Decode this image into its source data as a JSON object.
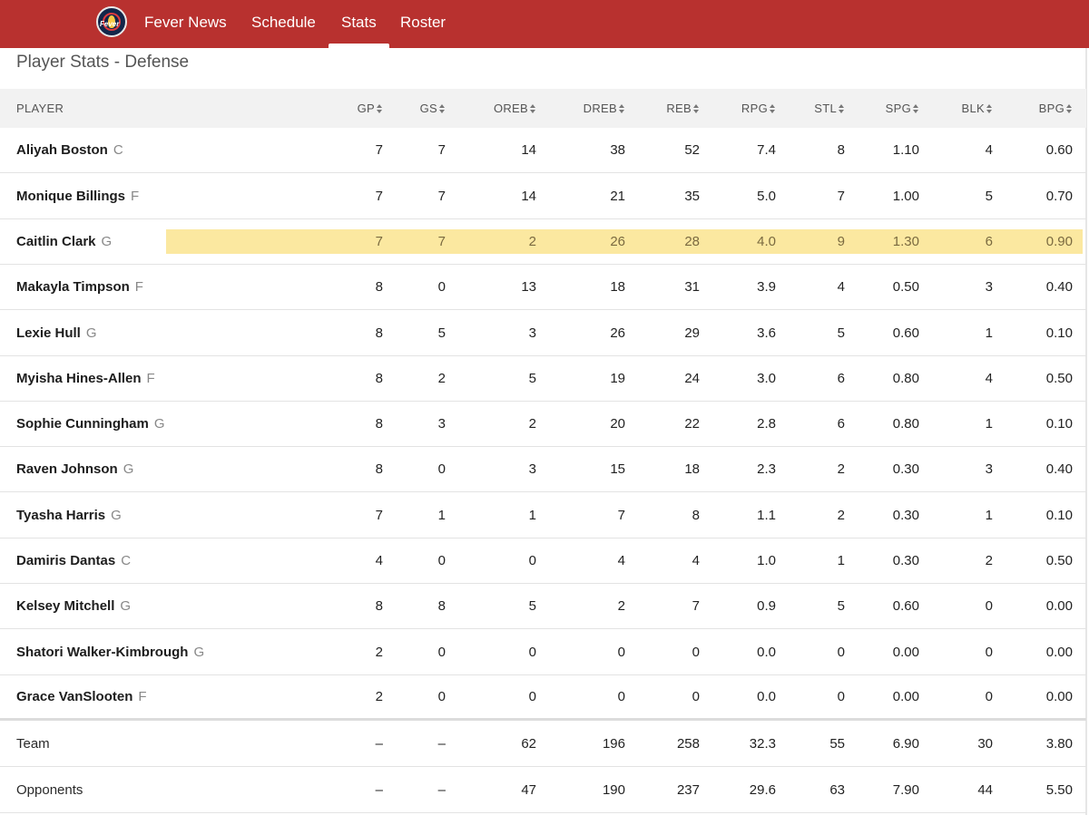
{
  "nav": {
    "logo_text": "Fever",
    "items": [
      {
        "label": "Fever News",
        "active": false
      },
      {
        "label": "Schedule",
        "active": false
      },
      {
        "label": "Stats",
        "active": true
      },
      {
        "label": "Roster",
        "active": false
      }
    ]
  },
  "page": {
    "title": "Player Stats - Defense"
  },
  "colors": {
    "brand": "#b8312f",
    "highlight": "#fbe8a0"
  },
  "table": {
    "player_header": "PLAYER",
    "columns": [
      "GP",
      "GS",
      "OREB",
      "DREB",
      "REB",
      "RPG",
      "STL",
      "SPG",
      "BLK",
      "BPG"
    ],
    "highlighted_player": "Caitlin Clark",
    "players": [
      {
        "name": "Aliyah Boston",
        "pos": "C",
        "stats": [
          "7",
          "7",
          "14",
          "38",
          "52",
          "7.4",
          "8",
          "1.10",
          "4",
          "0.60"
        ]
      },
      {
        "name": "Monique Billings",
        "pos": "F",
        "stats": [
          "7",
          "7",
          "14",
          "21",
          "35",
          "5.0",
          "7",
          "1.00",
          "5",
          "0.70"
        ]
      },
      {
        "name": "Caitlin Clark",
        "pos": "G",
        "stats": [
          "7",
          "7",
          "2",
          "26",
          "28",
          "4.0",
          "9",
          "1.30",
          "6",
          "0.90"
        ]
      },
      {
        "name": "Makayla Timpson",
        "pos": "F",
        "stats": [
          "8",
          "0",
          "13",
          "18",
          "31",
          "3.9",
          "4",
          "0.50",
          "3",
          "0.40"
        ]
      },
      {
        "name": "Lexie Hull",
        "pos": "G",
        "stats": [
          "8",
          "5",
          "3",
          "26",
          "29",
          "3.6",
          "5",
          "0.60",
          "1",
          "0.10"
        ]
      },
      {
        "name": "Myisha Hines-Allen",
        "pos": "F",
        "stats": [
          "8",
          "2",
          "5",
          "19",
          "24",
          "3.0",
          "6",
          "0.80",
          "4",
          "0.50"
        ]
      },
      {
        "name": "Sophie Cunningham",
        "pos": "G",
        "stats": [
          "8",
          "3",
          "2",
          "20",
          "22",
          "2.8",
          "6",
          "0.80",
          "1",
          "0.10"
        ]
      },
      {
        "name": "Raven Johnson",
        "pos": "G",
        "stats": [
          "8",
          "0",
          "3",
          "15",
          "18",
          "2.3",
          "2",
          "0.30",
          "3",
          "0.40"
        ]
      },
      {
        "name": "Tyasha Harris",
        "pos": "G",
        "stats": [
          "7",
          "1",
          "1",
          "7",
          "8",
          "1.1",
          "2",
          "0.30",
          "1",
          "0.10"
        ]
      },
      {
        "name": "Damiris Dantas",
        "pos": "C",
        "stats": [
          "4",
          "0",
          "0",
          "4",
          "4",
          "1.0",
          "1",
          "0.30",
          "2",
          "0.50"
        ]
      },
      {
        "name": "Kelsey Mitchell",
        "pos": "G",
        "stats": [
          "8",
          "8",
          "5",
          "2",
          "7",
          "0.9",
          "5",
          "0.60",
          "0",
          "0.00"
        ]
      },
      {
        "name": "Shatori Walker-Kimbrough",
        "pos": "G",
        "stats": [
          "2",
          "0",
          "0",
          "0",
          "0",
          "0.0",
          "0",
          "0.00",
          "0",
          "0.00"
        ]
      },
      {
        "name": "Grace VanSlooten",
        "pos": "F",
        "stats": [
          "2",
          "0",
          "0",
          "0",
          "0",
          "0.0",
          "0",
          "0.00",
          "0",
          "0.00"
        ]
      }
    ],
    "totals": [
      {
        "name": "Team",
        "stats": [
          "–",
          "–",
          "62",
          "196",
          "258",
          "32.3",
          "55",
          "6.90",
          "30",
          "3.80"
        ]
      },
      {
        "name": "Opponents",
        "stats": [
          "–",
          "–",
          "47",
          "190",
          "237",
          "29.6",
          "63",
          "7.90",
          "44",
          "5.50"
        ]
      }
    ]
  }
}
